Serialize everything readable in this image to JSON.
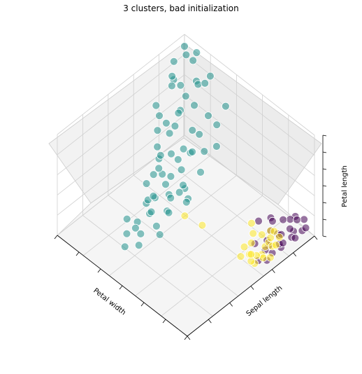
{
  "chart_data": {
    "type": "scatter",
    "projection": "3d",
    "title": "3 clusters, bad initialization",
    "axes": {
      "x": {
        "label": "Petal width",
        "ticks_shown": false
      },
      "y": {
        "label": "Sepal length",
        "ticks_shown": false
      },
      "z": {
        "label": "Petal length",
        "ticks_shown": false
      }
    },
    "grid": true,
    "colors": {
      "cluster_0": "#440154",
      "cluster_1": "#21918c",
      "cluster_2": "#fde725"
    },
    "axis_ranges_x": [
      0,
      2.5
    ],
    "axis_ranges_y": [
      4.3,
      7.9
    ],
    "axis_ranges_z": [
      1,
      6.9
    ],
    "series": [
      {
        "cluster": 1,
        "color": "#21918c",
        "points": [
          [
            2.0,
            4.7,
            6.0
          ],
          [
            1.9,
            4.8,
            6.2
          ],
          [
            1.8,
            4.6,
            6.6
          ],
          [
            2.2,
            4.5,
            6.4
          ],
          [
            2.4,
            4.4,
            6.1
          ],
          [
            2.3,
            4.9,
            5.7
          ],
          [
            2.1,
            5.0,
            6.0
          ],
          [
            1.5,
            5.1,
            5.8
          ],
          [
            1.3,
            4.9,
            6.5
          ],
          [
            2.5,
            4.3,
            6.2
          ],
          [
            1.9,
            5.3,
            5.5
          ],
          [
            1.6,
            5.4,
            5.2
          ],
          [
            1.4,
            5.5,
            5.6
          ],
          [
            1.7,
            5.2,
            6.1
          ],
          [
            1.2,
            5.3,
            6.3
          ],
          [
            1.8,
            5.6,
            5.3
          ],
          [
            1.5,
            5.8,
            5.0
          ],
          [
            1.3,
            5.9,
            5.4
          ],
          [
            1.0,
            5.6,
            6.0
          ],
          [
            1.1,
            5.8,
            5.8
          ],
          [
            1.6,
            6.0,
            4.8
          ],
          [
            1.4,
            6.1,
            5.1
          ],
          [
            1.2,
            6.3,
            5.3
          ],
          [
            0.9,
            6.2,
            5.7
          ],
          [
            1.7,
            6.2,
            4.6
          ],
          [
            1.5,
            6.4,
            4.5
          ],
          [
            1.3,
            6.6,
            4.7
          ],
          [
            1.0,
            6.5,
            5.0
          ],
          [
            0.8,
            6.7,
            5.2
          ],
          [
            1.1,
            6.8,
            4.9
          ],
          [
            1.6,
            6.7,
            4.2
          ],
          [
            1.3,
            6.9,
            4.4
          ],
          [
            1.0,
            7.0,
            4.5
          ],
          [
            0.9,
            7.1,
            4.8
          ],
          [
            1.2,
            7.2,
            4.2
          ],
          [
            1.4,
            7.0,
            4.0
          ],
          [
            1.0,
            7.3,
            4.1
          ],
          [
            0.8,
            7.5,
            4.4
          ],
          [
            1.1,
            7.6,
            3.9
          ],
          [
            1.3,
            7.4,
            3.8
          ],
          [
            2.0,
            5.0,
            5.6
          ],
          [
            2.2,
            5.1,
            5.9
          ],
          [
            2.4,
            4.8,
            5.5
          ],
          [
            1.8,
            5.5,
            5.9
          ],
          [
            1.9,
            5.7,
            5.4
          ],
          [
            2.1,
            5.6,
            5.2
          ],
          [
            1.7,
            5.9,
            5.6
          ],
          [
            1.6,
            6.3,
            5.2
          ],
          [
            1.5,
            6.5,
            5.0
          ],
          [
            1.2,
            6.6,
            5.4
          ],
          [
            1.0,
            6.9,
            5.1
          ],
          [
            0.9,
            6.8,
            5.5
          ],
          [
            1.3,
            7.1,
            4.6
          ],
          [
            1.1,
            7.3,
            4.7
          ],
          [
            1.4,
            6.8,
            4.1
          ],
          [
            2.3,
            5.4,
            5.0
          ],
          [
            2.0,
            5.8,
            4.9
          ],
          [
            1.8,
            6.1,
            4.9
          ],
          [
            1.6,
            6.5,
            4.4
          ],
          [
            1.2,
            7.6,
            4.0
          ],
          [
            2.2,
            4.4,
            6.7
          ],
          [
            1.7,
            4.9,
            6.9
          ],
          [
            2.5,
            4.6,
            5.8
          ],
          [
            1.4,
            5.7,
            4.9
          ],
          [
            1.1,
            6.4,
            4.8
          ],
          [
            0.9,
            6.6,
            4.6
          ],
          [
            1.5,
            7.4,
            3.5
          ],
          [
            1.3,
            7.7,
            3.6
          ],
          [
            1.0,
            7.8,
            3.8
          ],
          [
            1.2,
            7.9,
            3.4
          ]
        ]
      },
      {
        "cluster": 0,
        "color": "#440154",
        "points": [
          [
            0.2,
            4.3,
            1.5
          ],
          [
            0.1,
            4.5,
            1.4
          ],
          [
            0.3,
            4.4,
            1.6
          ],
          [
            0.2,
            4.6,
            1.3
          ],
          [
            0.4,
            4.4,
            1.2
          ],
          [
            0.2,
            4.7,
            1.6
          ],
          [
            0.1,
            4.8,
            1.5
          ],
          [
            0.3,
            4.9,
            1.4
          ],
          [
            0.2,
            5.0,
            1.7
          ],
          [
            0.4,
            4.6,
            1.5
          ],
          [
            0.1,
            5.1,
            1.4
          ],
          [
            0.2,
            5.0,
            1.2
          ],
          [
            0.3,
            5.2,
            1.5
          ],
          [
            0.2,
            5.3,
            1.6
          ],
          [
            0.5,
            4.8,
            1.7
          ],
          [
            0.1,
            4.7,
            1.3
          ],
          [
            0.2,
            4.5,
            1.8
          ],
          [
            0.3,
            5.1,
            1.9
          ],
          [
            0.2,
            4.9,
            1.1
          ],
          [
            0.4,
            5.4,
            1.4
          ],
          [
            0.6,
            5.0,
            1.6
          ],
          [
            0.1,
            5.5,
            1.3
          ],
          [
            0.2,
            5.2,
            1.0
          ],
          [
            0.3,
            4.8,
            1.2
          ],
          [
            0.2,
            5.4,
            1.5
          ],
          [
            0.1,
            4.4,
            1.4
          ],
          [
            0.4,
            4.9,
            1.9
          ],
          [
            0.2,
            5.6,
            1.2
          ]
        ]
      },
      {
        "cluster": 2,
        "color": "#fde725",
        "points": [
          [
            0.2,
            5.5,
            1.4
          ],
          [
            0.3,
            5.7,
            1.5
          ],
          [
            0.2,
            5.4,
            1.7
          ],
          [
            0.4,
            5.8,
            1.3
          ],
          [
            0.1,
            5.6,
            1.6
          ],
          [
            0.2,
            5.7,
            1.2
          ],
          [
            0.3,
            5.1,
            1.9
          ],
          [
            0.2,
            5.8,
            1.5
          ],
          [
            0.4,
            5.2,
            1.6
          ],
          [
            0.2,
            5.3,
            1.8
          ],
          [
            0.3,
            5.5,
            1.1
          ],
          [
            0.1,
            5.4,
            1.3
          ],
          [
            0.2,
            5.0,
            1.6
          ],
          [
            0.4,
            5.7,
            1.7
          ],
          [
            0.2,
            5.2,
            1.4
          ],
          [
            0.5,
            5.3,
            1.6
          ],
          [
            0.3,
            5.1,
            1.5
          ],
          [
            0.2,
            5.8,
            1.9
          ],
          [
            0.4,
            5.5,
            1.6
          ],
          [
            0.2,
            5.1,
            1.3
          ],
          [
            0.6,
            5.2,
            1.8
          ],
          [
            0.3,
            5.0,
            1.7
          ],
          [
            0.8,
            6.3,
            3.0
          ],
          [
            1.0,
            6.5,
            3.4
          ]
        ]
      }
    ]
  }
}
